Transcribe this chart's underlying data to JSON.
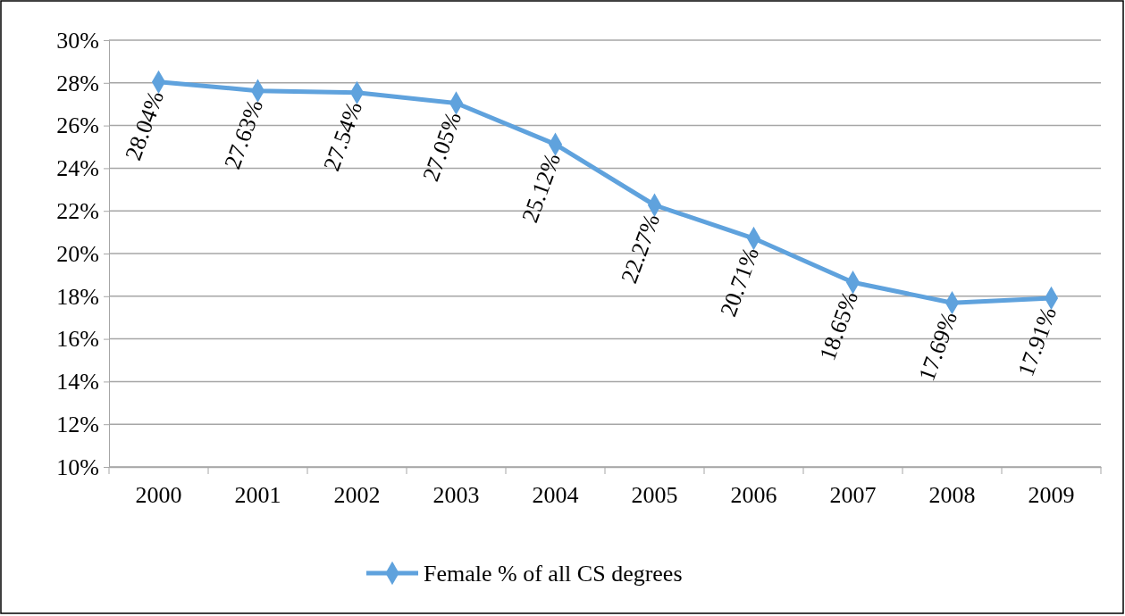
{
  "chart_data": {
    "type": "line",
    "categories": [
      "2000",
      "2001",
      "2002",
      "2003",
      "2004",
      "2005",
      "2006",
      "2007",
      "2008",
      "2009"
    ],
    "series": [
      {
        "name": "Female % of all CS degrees",
        "color": "#5fa2dd",
        "values": [
          28.04,
          27.63,
          27.54,
          27.05,
          25.12,
          22.27,
          20.71,
          18.65,
          17.69,
          17.91
        ],
        "value_labels": [
          "28.04%",
          "27.63%",
          "27.54%",
          "27.05%",
          "25.12%",
          "22.27%",
          "20.71%",
          "18.65%",
          "17.69%",
          "17.91%"
        ]
      }
    ],
    "ylim": [
      10,
      30
    ],
    "yticks": [
      {
        "value": 10,
        "label": "10%"
      },
      {
        "value": 12,
        "label": "12%"
      },
      {
        "value": 14,
        "label": "14%"
      },
      {
        "value": 16,
        "label": "16%"
      },
      {
        "value": 18,
        "label": "18%"
      },
      {
        "value": 20,
        "label": "20%"
      },
      {
        "value": 22,
        "label": "22%"
      },
      {
        "value": 24,
        "label": "24%"
      },
      {
        "value": 26,
        "label": "26%"
      },
      {
        "value": 28,
        "label": "28%"
      },
      {
        "value": 30,
        "label": "30%"
      }
    ],
    "grid": "y",
    "legend": "bottom",
    "marker": "diamond",
    "line_style": "solid"
  }
}
